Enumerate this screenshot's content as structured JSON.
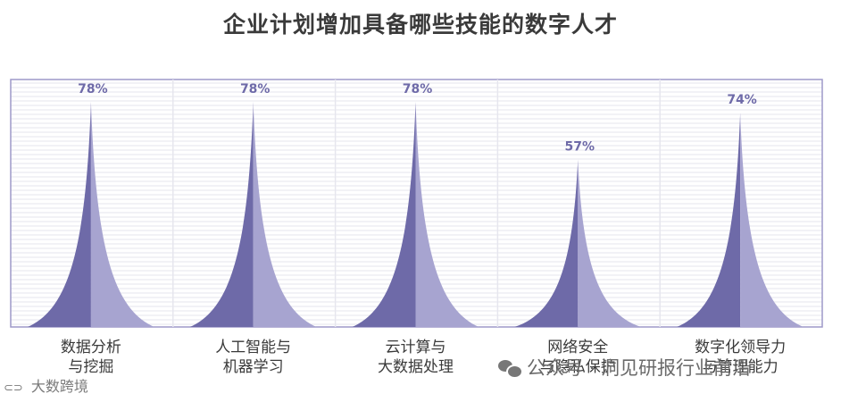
{
  "chart_data": {
    "type": "bar",
    "title": "企业计划增加具备哪些技能的数字人才",
    "categories": [
      [
        "数据分析",
        "与挖掘"
      ],
      [
        "人工智能与",
        "机器学习"
      ],
      [
        "云计算与",
        "大数据处理"
      ],
      [
        "网络安全",
        "与隐私保护"
      ],
      [
        "数字化领导力",
        "与管理能力"
      ]
    ],
    "values": [
      78,
      78,
      78,
      57,
      74
    ],
    "value_labels": [
      "78%",
      "78%",
      "78%",
      "57%",
      "74%"
    ],
    "ylim": [
      0,
      90
    ],
    "grid": true,
    "colors": {
      "dark": "#6e6aa8",
      "light": "#a7a4d0",
      "grid": "#e6e6ee",
      "border": "#9d99c8"
    }
  },
  "footer": {
    "left_text": "大数跨境",
    "left_icon": "link-icon",
    "right_text": "公众号 · 洞见研报行业前沿",
    "right_icon": "wechat-icon"
  }
}
